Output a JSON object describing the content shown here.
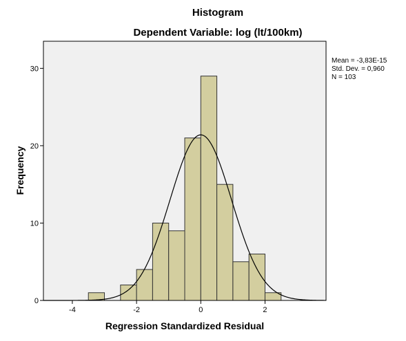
{
  "chart_data": {
    "type": "bar",
    "title": "Histogram",
    "subtitle": "Dependent Variable: log (lt/100km)",
    "xlabel": "Regression Standardized Residual",
    "ylabel": "Frequency",
    "xlim": [
      -4.9,
      3.9
    ],
    "ylim": [
      0,
      33.5
    ],
    "x_ticks": [
      -4,
      -2,
      0,
      2
    ],
    "y_ticks": [
      0,
      10,
      20,
      30
    ],
    "bin_width": 0.5,
    "bins": [
      {
        "start": -3.5,
        "end": -3.0,
        "count": 1
      },
      {
        "start": -3.0,
        "end": -2.5,
        "count": 0
      },
      {
        "start": -2.5,
        "end": -2.0,
        "count": 2
      },
      {
        "start": -2.0,
        "end": -1.5,
        "count": 4
      },
      {
        "start": -1.5,
        "end": -1.0,
        "count": 10
      },
      {
        "start": -1.0,
        "end": -0.5,
        "count": 9
      },
      {
        "start": -0.5,
        "end": 0.0,
        "count": 21
      },
      {
        "start": 0.0,
        "end": 0.5,
        "count": 29
      },
      {
        "start": 0.5,
        "end": 1.0,
        "count": 15
      },
      {
        "start": 1.0,
        "end": 1.5,
        "count": 5
      },
      {
        "start": 1.5,
        "end": 2.0,
        "count": 6
      },
      {
        "start": 2.0,
        "end": 2.5,
        "count": 1
      }
    ],
    "normal_curve": {
      "mean": -3.83e-15,
      "sd": 0.96,
      "n": 103
    },
    "stats_lines": [
      "Mean = -3,83E-15",
      "Std. Dev. = 0,960",
      "N = 103"
    ],
    "grid": false,
    "colors": {
      "bar_fill": "#d3ce9f",
      "bar_stroke": "#333333",
      "plot_bg": "#f0f0f0",
      "curve": "#000000"
    }
  }
}
